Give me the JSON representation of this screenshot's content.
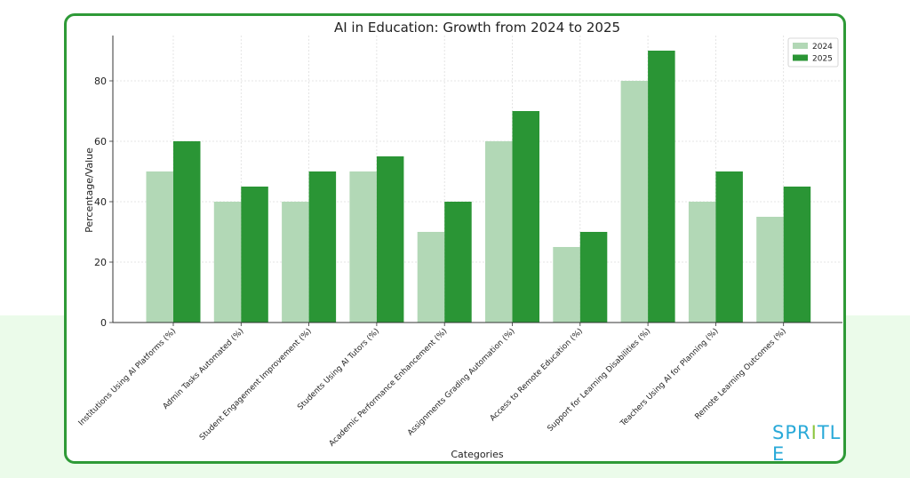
{
  "chart_data": {
    "type": "bar",
    "title": "AI in Education: Growth from 2024 to 2025",
    "xlabel": "Categories",
    "ylabel": "Percentage/Value",
    "ylim": [
      0,
      95
    ],
    "yticks": [
      0,
      20,
      40,
      60,
      80
    ],
    "grid": true,
    "legend_position": "top-right",
    "categories": [
      "Institutions Using AI Platforms (%)",
      "Admin Tasks Automated (%)",
      "Student Engagement Improvement (%)",
      "Students Using AI Tutors (%)",
      "Academic Performance Enhancement (%)",
      "Assignments Grading Automation (%)",
      "Access to Remote Education (%)",
      "Support for Learning Disabilities (%)",
      "Teachers Using AI for Planning (%)",
      "Remote Learning Outcomes (%)"
    ],
    "series": [
      {
        "name": "2024",
        "color": "#b2d8b6",
        "values": [
          50,
          40,
          40,
          50,
          30,
          60,
          25,
          80,
          40,
          35
        ]
      },
      {
        "name": "2025",
        "color": "#2a9535",
        "values": [
          60,
          45,
          50,
          55,
          40,
          70,
          30,
          90,
          50,
          45
        ]
      }
    ]
  },
  "logo": {
    "text": "SPRITLE",
    "colors": [
      "#29a9d8",
      "#29a9d8",
      "#29a9d8",
      "#8cc63f",
      "#29a9d8",
      "#29a9d8",
      "#29a9d8"
    ]
  },
  "colors": {
    "frame": "#2e9a37",
    "band": "#ebfbea"
  }
}
